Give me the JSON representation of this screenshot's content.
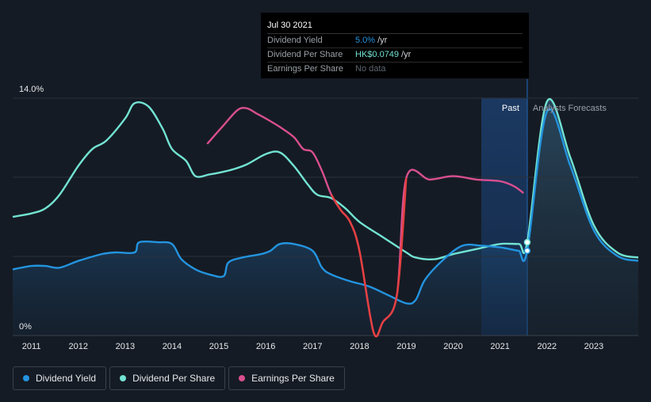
{
  "tooltip": {
    "date": "Jul 30 2021",
    "rows": [
      {
        "label": "Dividend Yield",
        "value": "5.0%",
        "unit": "/yr"
      },
      {
        "label": "Dividend Per Share",
        "value": "HK$0.0749",
        "unit": "/yr"
      },
      {
        "label": "Earnings Per Share",
        "value": "No data",
        "unit": ""
      }
    ]
  },
  "legend": [
    {
      "label": "Dividend Yield",
      "color": "#2394df"
    },
    {
      "label": "Dividend Per Share",
      "color": "#72e3d3"
    },
    {
      "label": "Earnings Per Share",
      "color": "#d84f8f"
    }
  ],
  "colors": {
    "background": "#151b24",
    "dividend_yield": "#2394df",
    "dividend_per_share": "#72e3d3",
    "earnings_per_share": "#d84f8f",
    "earnings_negative": "#e64040",
    "forecast_band": "#1b3a63"
  },
  "chart_data": {
    "type": "line",
    "title": "",
    "xlabel": "",
    "ylabel": "",
    "y_top_label": "14.0%",
    "y_bottom_label": "0%",
    "ylim": [
      0,
      14
    ],
    "xlim": [
      2010.6,
      2023.95
    ],
    "x_tick_labels": [
      "2011",
      "2012",
      "2013",
      "2014",
      "2015",
      "2016",
      "2017",
      "2018",
      "2019",
      "2020",
      "2021",
      "2022",
      "2023"
    ],
    "x_tick_values": [
      2011,
      2012,
      2013,
      2014,
      2015,
      2016,
      2017,
      2018,
      2019,
      2020,
      2021,
      2022,
      2023
    ],
    "past_label": "Past",
    "forecast_label": "Analysts Forecasts",
    "past_start": 2020.6,
    "forecast_start": 2021.58,
    "series": [
      {
        "name": "Dividend Yield",
        "unit": "%",
        "x": [
          2010.6,
          2011.0,
          2011.3,
          2011.6,
          2012.0,
          2012.5,
          2012.8,
          2013.2,
          2013.3,
          2013.7,
          2014.0,
          2014.2,
          2014.5,
          2014.8,
          2015.1,
          2015.2,
          2015.5,
          2015.9,
          2016.1,
          2016.3,
          2016.6,
          2017.0,
          2017.2,
          2017.4,
          2017.8,
          2018.2,
          2018.6,
          2019.0,
          2019.2,
          2019.4,
          2019.8,
          2020.2,
          2020.6,
          2021.0,
          2021.2,
          2021.4,
          2021.58,
          2022.0,
          2022.5,
          2023.0,
          2023.5,
          2023.95
        ],
        "values": [
          3.9,
          4.1,
          4.1,
          4.0,
          4.4,
          4.8,
          4.9,
          4.9,
          5.5,
          5.5,
          5.4,
          4.5,
          3.9,
          3.6,
          3.5,
          4.3,
          4.6,
          4.8,
          5.0,
          5.4,
          5.4,
          5.0,
          4.0,
          3.6,
          3.2,
          2.9,
          2.4,
          1.9,
          2.1,
          3.3,
          4.5,
          5.3,
          5.3,
          5.2,
          5.1,
          5.0,
          5.0,
          13.2,
          10.0,
          6.2,
          4.7,
          4.4
        ]
      },
      {
        "name": "Dividend Per Share",
        "unit": "%",
        "x": [
          2010.6,
          2011.0,
          2011.3,
          2011.6,
          2012.0,
          2012.3,
          2012.6,
          2013.0,
          2013.2,
          2013.5,
          2013.8,
          2014.0,
          2014.3,
          2014.5,
          2014.8,
          2015.0,
          2015.3,
          2015.6,
          2016.0,
          2016.3,
          2016.6,
          2016.9,
          2017.1,
          2017.4,
          2017.7,
          2018.0,
          2018.5,
          2019.0,
          2019.2,
          2019.6,
          2020.0,
          2020.5,
          2021.0,
          2021.4,
          2021.58,
          2022.0,
          2022.5,
          2023.0,
          2023.5,
          2023.95
        ],
        "values": [
          7.0,
          7.2,
          7.5,
          8.3,
          10.0,
          11.0,
          11.5,
          12.8,
          13.7,
          13.5,
          12.2,
          11.0,
          10.3,
          9.4,
          9.5,
          9.6,
          9.8,
          10.1,
          10.7,
          10.8,
          10.0,
          8.9,
          8.3,
          8.1,
          7.5,
          6.7,
          5.8,
          4.9,
          4.6,
          4.5,
          4.8,
          5.1,
          5.4,
          5.4,
          5.5,
          13.8,
          10.5,
          6.5,
          4.9,
          4.6
        ]
      },
      {
        "name": "Earnings Per Share",
        "unit": "%",
        "x": [
          2014.75,
          2015.1,
          2015.4,
          2015.6,
          2015.8,
          2016.0,
          2016.3,
          2016.6,
          2016.8,
          2017.0,
          2017.2,
          2017.4,
          2017.6,
          2017.8,
          2018.0,
          2018.3,
          2018.5,
          2018.8,
          2019.0,
          2019.5,
          2020.0,
          2020.5,
          2021.0,
          2021.3,
          2021.5
        ],
        "values": [
          11.3,
          12.4,
          13.3,
          13.4,
          13.1,
          12.8,
          12.3,
          11.7,
          11.0,
          10.8,
          9.7,
          8.3,
          7.4,
          6.7,
          5.0,
          0.2,
          0.8,
          2.4,
          9.3,
          9.2,
          9.4,
          9.2,
          9.1,
          8.8,
          8.4
        ]
      }
    ]
  }
}
